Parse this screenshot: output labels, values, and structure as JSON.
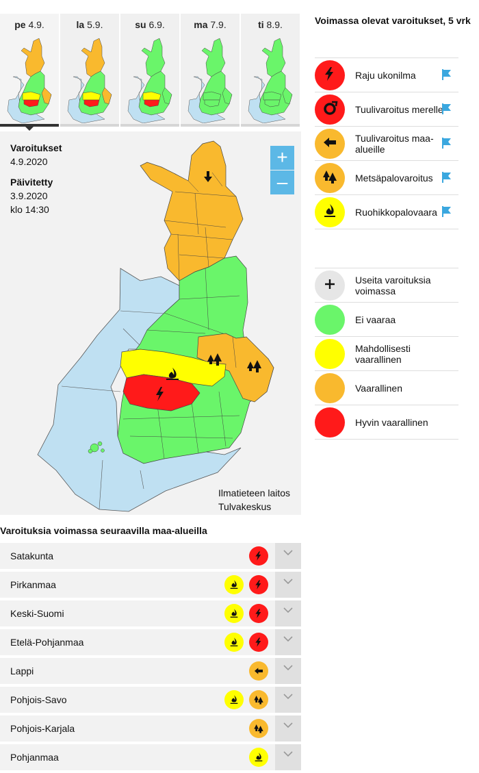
{
  "colors": {
    "red": "#ff1a1a",
    "orange": "#f9b92e",
    "yellow": "#ffff00",
    "green": "#6af56a",
    "sea": "#bfe0f2",
    "gray": "#e6e6e6",
    "flag": "#3aa7df",
    "zoom": "#5cb8e6"
  },
  "days": [
    {
      "abbr": "pe",
      "date": "4.9.",
      "active": true
    },
    {
      "abbr": "la",
      "date": "5.9.",
      "active": false
    },
    {
      "abbr": "su",
      "date": "6.9.",
      "active": false
    },
    {
      "abbr": "ma",
      "date": "7.9.",
      "active": false
    },
    {
      "abbr": "ti",
      "date": "8.9.",
      "active": false
    }
  ],
  "map": {
    "warnings_label": "Varoitukset",
    "warnings_date": "4.9.2020",
    "updated_label": "Päivitetty",
    "updated_date": "3.9.2020",
    "updated_time": "klo 14:30",
    "zoom_in": "+",
    "zoom_out": "–",
    "credit_line1": "Ilmatieteen laitos",
    "credit_line2": "Tulvakeskus"
  },
  "legend": {
    "title": "Voimassa olevat varoitukset, 5 vrk",
    "warnings": [
      {
        "label": "Raju ukonilma",
        "icon": "lightning-icon",
        "color": "red"
      },
      {
        "label": "Tuulivaroitus merelle",
        "icon": "sea-wind-icon",
        "color": "red"
      },
      {
        "label": "Tuulivaroitus maa-alueille",
        "icon": "land-wind-arrow-icon",
        "color": "orange"
      },
      {
        "label": "Metsäpalovaroitus",
        "icon": "forest-fire-icon",
        "color": "orange"
      },
      {
        "label": "Ruohikkopalovaara",
        "icon": "grass-fire-icon",
        "color": "yellow"
      }
    ],
    "levels": [
      {
        "label": "Useita varoituksia voimassa",
        "icon": "plus-icon",
        "color": "gray"
      },
      {
        "label": "Ei vaaraa",
        "color": "green"
      },
      {
        "label": "Mahdollisesti vaarallinen",
        "color": "yellow"
      },
      {
        "label": "Vaarallinen",
        "color": "orange"
      },
      {
        "label": "Hyvin vaarallinen",
        "color": "red"
      }
    ]
  },
  "regions": {
    "title": "Varoituksia voimassa seuraavilla maa-alueilla",
    "items": [
      {
        "name": "Satakunta",
        "badges": [
          {
            "icon": "lightning-icon",
            "color": "red"
          }
        ]
      },
      {
        "name": "Pirkanmaa",
        "badges": [
          {
            "icon": "grass-fire-icon",
            "color": "yellow"
          },
          {
            "icon": "lightning-icon",
            "color": "red"
          }
        ]
      },
      {
        "name": "Keski-Suomi",
        "badges": [
          {
            "icon": "grass-fire-icon",
            "color": "yellow"
          },
          {
            "icon": "lightning-icon",
            "color": "red"
          }
        ]
      },
      {
        "name": "Etelä-Pohjanmaa",
        "badges": [
          {
            "icon": "grass-fire-icon",
            "color": "yellow"
          },
          {
            "icon": "lightning-icon",
            "color": "red"
          }
        ]
      },
      {
        "name": "Lappi",
        "badges": [
          {
            "icon": "land-wind-arrow-icon",
            "color": "orange"
          }
        ]
      },
      {
        "name": "Pohjois-Savo",
        "badges": [
          {
            "icon": "grass-fire-icon",
            "color": "yellow"
          },
          {
            "icon": "forest-fire-icon",
            "color": "orange"
          }
        ]
      },
      {
        "name": "Pohjois-Karjala",
        "badges": [
          {
            "icon": "forest-fire-icon",
            "color": "orange"
          }
        ]
      },
      {
        "name": "Pohjanmaa",
        "badges": [
          {
            "icon": "grass-fire-icon",
            "color": "yellow"
          }
        ]
      }
    ]
  }
}
